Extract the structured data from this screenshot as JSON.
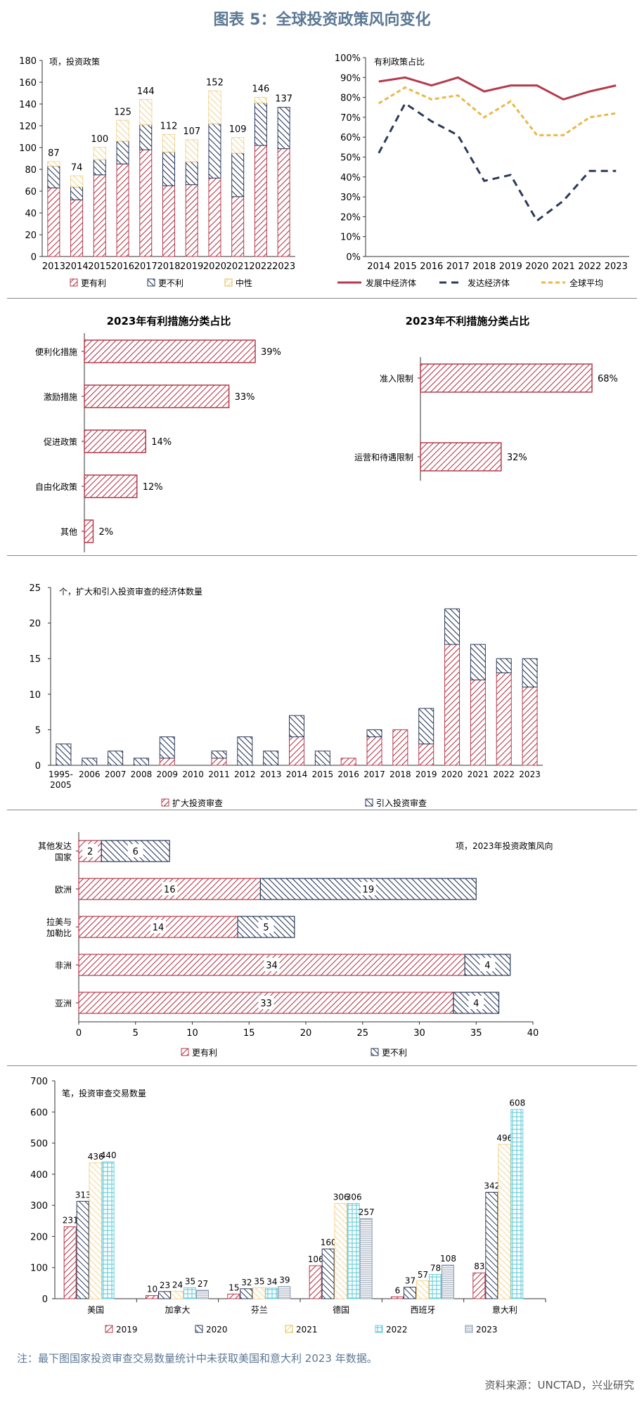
{
  "title": "图表 5：全球投资政策风向变化",
  "note": "注：最下图国家投资审查交易数量统计中未获取美国和意大利 2023 年数据。",
  "source": "资料来源：UNCTAD，兴业研究",
  "colors": {
    "red": "#b53a4b",
    "navy": "#2b3a5a",
    "gold": "#e8b84a",
    "cyan": "#6fd0dc",
    "grey": "#8a98ad"
  },
  "chart_data": [
    {
      "type": "bar",
      "stacked": true,
      "unit_label": "项，投资政策",
      "categories": [
        "2013",
        "2014",
        "2015",
        "2016",
        "2017",
        "2018",
        "2019",
        "2020",
        "2021",
        "2022",
        "2023"
      ],
      "ylim": [
        0,
        180
      ],
      "yticks": [
        "0",
        "20",
        "40",
        "60",
        "80",
        "100",
        "120",
        "140",
        "160",
        "180"
      ],
      "series": [
        {
          "name": "更有利",
          "values": [
            63,
            52,
            75,
            85,
            98,
            65,
            66,
            72,
            55,
            102,
            99
          ]
        },
        {
          "name": "更不利",
          "values": [
            20,
            12,
            14,
            21,
            23,
            31,
            21,
            50,
            40,
            39,
            38
          ]
        },
        {
          "name": "中性",
          "values": [
            4,
            10,
            11,
            19,
            23,
            16,
            20,
            30,
            14,
            5,
            0
          ]
        }
      ],
      "totals": [
        "87",
        "74",
        "100",
        "125",
        "144",
        "112",
        "107",
        "152",
        "109",
        "146",
        "137"
      ]
    },
    {
      "type": "line",
      "unit_label": "有利政策占比",
      "x": [
        "2014",
        "2015",
        "2016",
        "2017",
        "2018",
        "2019",
        "2020",
        "2021",
        "2022",
        "2023"
      ],
      "ylim": [
        0,
        100
      ],
      "yticks": [
        "0%",
        "10%",
        "20%",
        "30%",
        "40%",
        "50%",
        "60%",
        "70%",
        "80%",
        "90%",
        "100%"
      ],
      "series": [
        {
          "name": "发展中经济体",
          "values": [
            88,
            90,
            86,
            90,
            83,
            86,
            86,
            79,
            83,
            86
          ]
        },
        {
          "name": "发达经济体",
          "values": [
            52,
            77,
            68,
            61,
            38,
            41,
            18,
            28,
            43,
            43
          ]
        },
        {
          "name": "全球平均",
          "values": [
            77,
            85,
            79,
            81,
            70,
            78,
            61,
            61,
            70,
            72
          ]
        }
      ]
    },
    {
      "type": "bar",
      "orientation": "horizontal",
      "title": "2023年有利措施分类占比",
      "categories": [
        "便利化措施",
        "激励措施",
        "促进政策",
        "自由化政策",
        "其他"
      ],
      "values": [
        39,
        33,
        14,
        12,
        2
      ],
      "labels": [
        "39%",
        "33%",
        "14%",
        "12%",
        "2%"
      ]
    },
    {
      "type": "bar",
      "orientation": "horizontal",
      "title": "2023年不利措施分类占比",
      "categories": [
        "准入限制",
        "运营和待遇限制"
      ],
      "values": [
        68,
        32
      ],
      "labels": [
        "68%",
        "32%"
      ]
    },
    {
      "type": "bar",
      "stacked": true,
      "unit_label": "个，扩大和引入投资审查的经济体数量",
      "categories": [
        "1995-2005",
        "2006",
        "2007",
        "2008",
        "2009",
        "2010",
        "2011",
        "2012",
        "2013",
        "2014",
        "2015",
        "2016",
        "2017",
        "2018",
        "2019",
        "2020",
        "2021",
        "2022",
        "2023"
      ],
      "ylim": [
        0,
        25
      ],
      "yticks": [
        "0",
        "5",
        "10",
        "15",
        "20",
        "25"
      ],
      "series": [
        {
          "name": "扩大投资审查",
          "values": [
            0,
            0,
            0,
            0,
            1,
            0,
            1,
            0,
            0,
            4,
            0,
            1,
            4,
            5,
            3,
            17,
            12,
            13,
            11
          ]
        },
        {
          "name": "引入投资审查",
          "values": [
            3,
            1,
            2,
            1,
            3,
            0,
            1,
            4,
            2,
            3,
            2,
            0,
            1,
            0,
            5,
            5,
            5,
            2,
            4
          ]
        }
      ]
    },
    {
      "type": "bar",
      "orientation": "horizontal",
      "stacked": true,
      "unit_label": "项，2023年投资政策风向",
      "categories": [
        "其他发达国家",
        "欧洲",
        "拉美与加勒比",
        "非洲",
        "亚洲"
      ],
      "cat_lines": [
        [
          "其他发达",
          "国家"
        ],
        [
          "欧洲"
        ],
        [
          "拉美与",
          "加勒比"
        ],
        [
          "非洲"
        ],
        [
          "亚洲"
        ]
      ],
      "xlim": [
        0,
        40
      ],
      "xticks": [
        "0",
        "5",
        "10",
        "15",
        "20",
        "25",
        "30",
        "35",
        "40"
      ],
      "series": [
        {
          "name": "更有利",
          "values": [
            2,
            16,
            14,
            34,
            33
          ],
          "labels": [
            "2",
            "16",
            "14",
            "34",
            "33"
          ]
        },
        {
          "name": "更不利",
          "values": [
            6,
            19,
            5,
            4,
            4
          ],
          "labels": [
            "6",
            "19",
            "5",
            "4",
            "4"
          ]
        }
      ]
    },
    {
      "type": "bar",
      "unit_label": "笔，投资审查交易数量",
      "categories": [
        "美国",
        "加拿大",
        "芬兰",
        "德国",
        "西班牙",
        "意大利"
      ],
      "ylim": [
        0,
        700
      ],
      "yticks": [
        "0",
        "100",
        "200",
        "300",
        "400",
        "500",
        "600",
        "700"
      ],
      "series": [
        {
          "name": "2019",
          "values": [
            231,
            10,
            15,
            106,
            6,
            83
          ],
          "labels": [
            "231",
            "10",
            "15",
            "106",
            "6",
            "83"
          ]
        },
        {
          "name": "2020",
          "values": [
            313,
            23,
            32,
            160,
            37,
            342
          ],
          "labels": [
            "313",
            "23",
            "32",
            "160",
            "37",
            "342"
          ]
        },
        {
          "name": "2021",
          "values": [
            436,
            24,
            35,
            306,
            57,
            496
          ],
          "labels": [
            "436",
            "24",
            "35",
            "306",
            "57",
            "496"
          ]
        },
        {
          "name": "2022",
          "values": [
            440,
            35,
            34,
            306,
            78,
            608
          ],
          "labels": [
            "440",
            "35",
            "34",
            "306",
            "78",
            "608"
          ]
        },
        {
          "name": "2023",
          "values": [
            null,
            27,
            39,
            257,
            108,
            null
          ],
          "labels": [
            "",
            "27",
            "39",
            "257",
            "108",
            ""
          ]
        }
      ]
    }
  ]
}
